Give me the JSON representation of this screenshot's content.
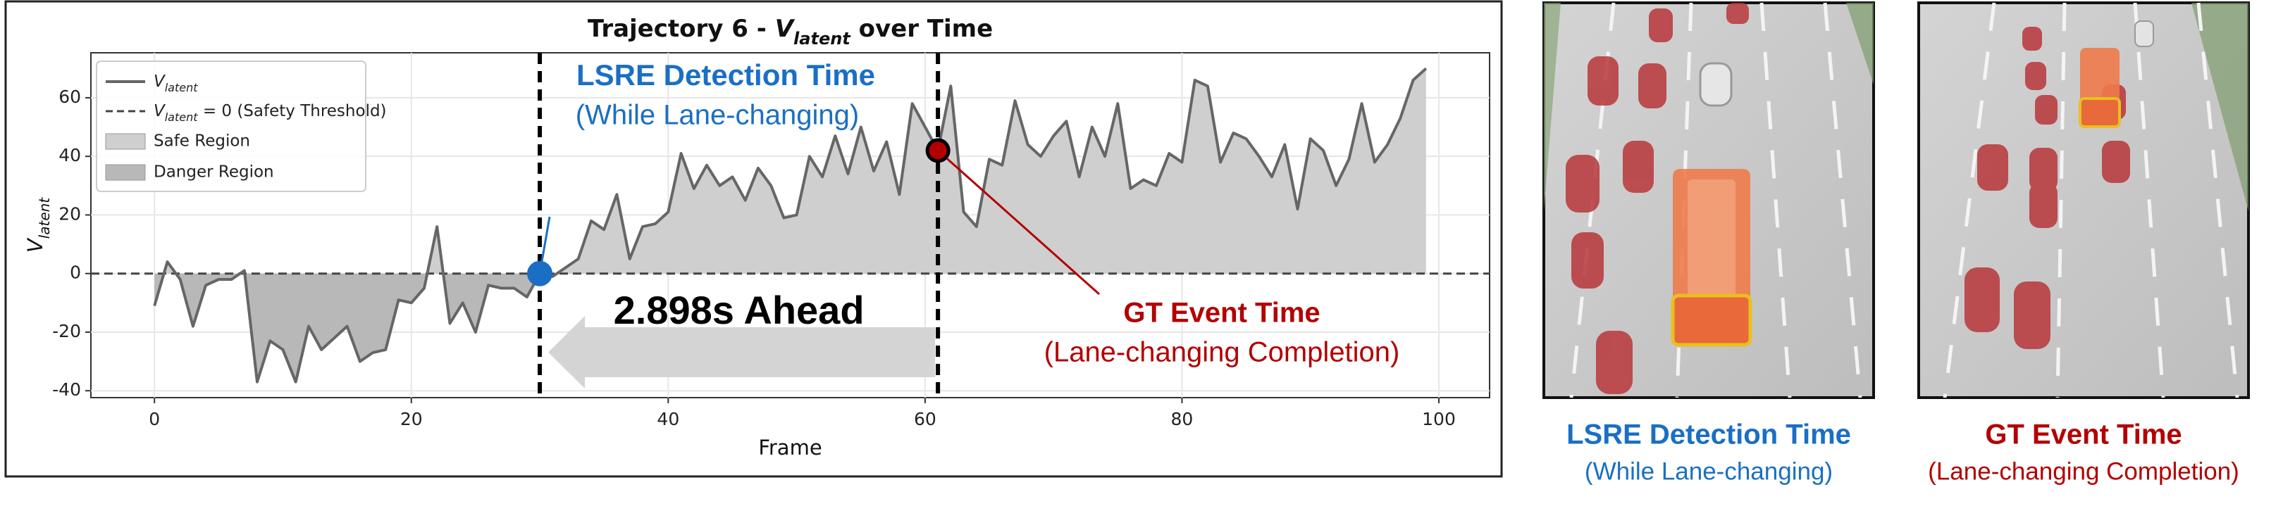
{
  "chart_data": {
    "type": "line",
    "title": {
      "prefix": "Trajectory 6 - ",
      "symbol": "V",
      "sub": "latent",
      "suffix": " over Time"
    },
    "x_label": "Frame",
    "y_label": {
      "symbol": "V",
      "sub": "latent"
    },
    "x": [
      0,
      1,
      2,
      3,
      4,
      5,
      6,
      7,
      8,
      9,
      10,
      11,
      12,
      13,
      14,
      15,
      16,
      17,
      18,
      19,
      20,
      21,
      22,
      23,
      24,
      25,
      26,
      27,
      28,
      29,
      30,
      31,
      32,
      33,
      34,
      35,
      36,
      37,
      38,
      39,
      40,
      41,
      42,
      43,
      44,
      45,
      46,
      47,
      48,
      49,
      50,
      51,
      52,
      53,
      54,
      55,
      56,
      57,
      58,
      59,
      60,
      61,
      62,
      63,
      64,
      65,
      66,
      67,
      68,
      69,
      70,
      71,
      72,
      73,
      74,
      75,
      76,
      77,
      78,
      79,
      80,
      81,
      82,
      83,
      84,
      85,
      86,
      87,
      88,
      89,
      90,
      91,
      92,
      93,
      94,
      95,
      96,
      97,
      98,
      99
    ],
    "series": [
      {
        "name": {
          "symbol": "V",
          "sub": "latent"
        },
        "color": "#666666",
        "values": [
          -11,
          4,
          -2,
          -18,
          -4,
          -2,
          -2,
          1,
          -37,
          -23,
          -26,
          -37,
          -18,
          -26,
          -22,
          -18,
          -30,
          -27,
          -26,
          -9,
          -10,
          -5,
          16,
          -17,
          -10,
          -20,
          -4,
          -5,
          -5,
          -8,
          0,
          -1,
          2,
          5,
          18,
          15,
          27,
          5,
          16,
          17,
          21,
          41,
          29,
          37,
          30,
          33,
          25,
          36,
          30,
          19,
          20,
          40,
          33,
          47,
          34,
          50,
          35,
          45,
          27,
          58,
          50,
          42,
          64,
          21,
          16,
          39,
          37,
          59,
          44,
          40,
          47,
          52,
          33,
          50,
          40,
          58,
          29,
          32,
          30,
          41,
          38,
          66,
          64,
          38,
          48,
          46,
          40,
          33,
          44,
          22,
          46,
          42,
          30,
          39,
          58,
          38,
          44,
          53,
          66,
          70
        ]
      }
    ],
    "threshold": {
      "value": 0,
      "label": {
        "symbol": "V",
        "sub": "latent",
        "after": " = 0 (Safety Threshold)"
      },
      "color": "#444444"
    },
    "regions": [
      {
        "name": "Safe Region",
        "color": "#cfcfcf"
      },
      {
        "name": "Danger Region",
        "color": "#b8b8b8"
      }
    ],
    "xlim": [
      -4.95,
      103.95
    ],
    "ylim": [
      -42.35,
      75.35
    ],
    "xticks": [
      0,
      20,
      40,
      60,
      80,
      100
    ],
    "yticks": [
      -40,
      -20,
      0,
      20,
      40,
      60
    ],
    "legend": "upper left",
    "annotations": {
      "detection": {
        "x": 30,
        "y": 0,
        "label": "LSRE Detection Time",
        "sublabel": "(While Lane-changing)",
        "color": "#1a6fc4"
      },
      "event": {
        "x": 61,
        "y": 42,
        "label": "GT Event Time",
        "sublabel": "(Lane-changing Completion)",
        "color": "#b30000"
      },
      "lead": "2.898s Ahead"
    }
  },
  "panels": [
    {
      "title": "LSRE Detection Time",
      "subtitle": "(While Lane-changing)",
      "color": "#1a6fc4"
    },
    {
      "title": "GT Event Time",
      "subtitle": "(Lane-changing Completion)",
      "color": "#b30000"
    }
  ]
}
